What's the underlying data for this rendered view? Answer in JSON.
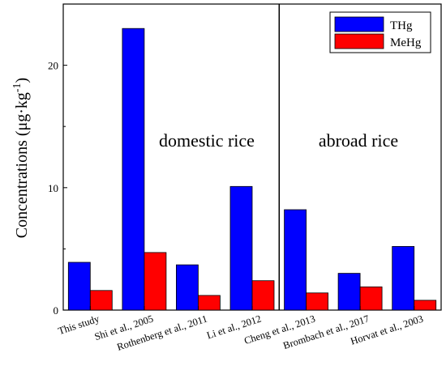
{
  "chart_data": {
    "type": "bar",
    "categories": [
      "This study",
      "Shi et al., 2005",
      "Rothenberg et al., 2011",
      "Li et al., 2012",
      "Cheng et al., 2013",
      "Brombach et al., 2017",
      "Horvat et al., 2003"
    ],
    "series": [
      {
        "name": "THg",
        "color": "#0000ff",
        "values": [
          3.9,
          23.0,
          3.7,
          10.1,
          8.2,
          3.0,
          5.2
        ]
      },
      {
        "name": "MeHg",
        "color": "#ff0000",
        "values": [
          1.6,
          4.7,
          1.2,
          2.4,
          1.4,
          1.9,
          0.8
        ]
      }
    ],
    "ylabel": "Concentrations (μg·kg",
    "ylabel_sup": "-1",
    "ylabel_close": ")",
    "ylim": [
      0,
      25
    ],
    "yticks": [
      "0",
      "10",
      "20"
    ],
    "yticks_values": [
      0,
      10,
      20
    ],
    "annotations": {
      "domestic": "domestic rice",
      "abroad": "abroad rice"
    },
    "divider_after_category": 3,
    "legend_position": "top-right",
    "grid": false
  }
}
